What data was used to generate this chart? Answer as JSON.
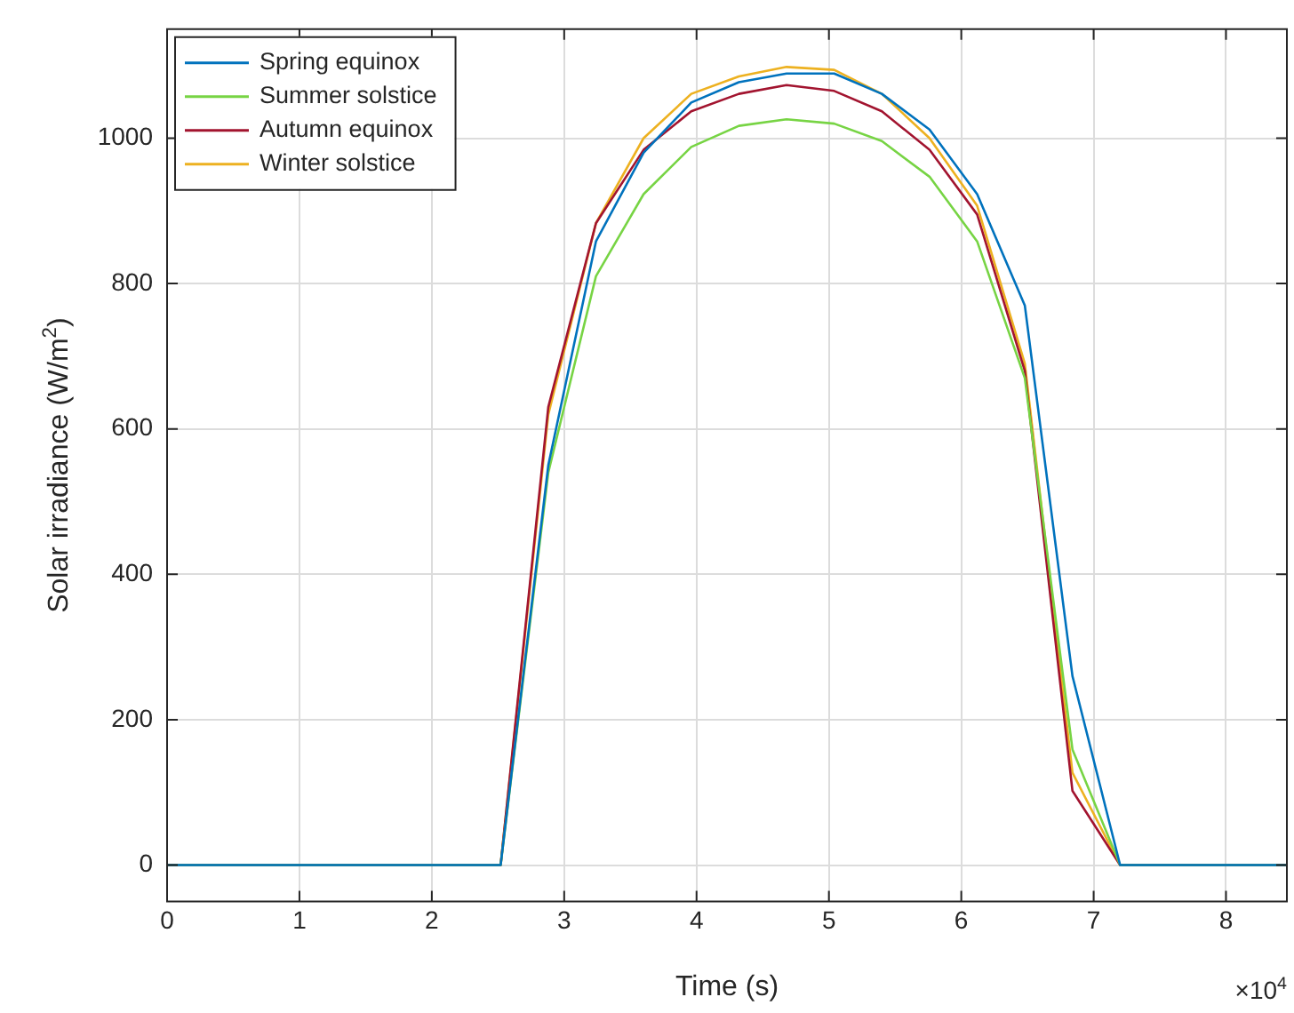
{
  "chart_data": {
    "type": "line",
    "xlabel": "Time (s)",
    "ylabel": "Solar irradiance (W/m$^{2}$)",
    "x": [
      0,
      2.52,
      2.88,
      3.24,
      3.6,
      3.96,
      4.32,
      4.68,
      5.04,
      5.4,
      5.76,
      6.12,
      6.48,
      6.84,
      7.2,
      8.46
    ],
    "series": [
      {
        "name": "Spring equinox",
        "color": "#0072bd",
        "values": [
          0,
          0,
          550,
          858,
          980,
          1049,
          1077,
          1089,
          1089,
          1061,
          1012,
          923,
          770,
          260,
          0,
          0
        ]
      },
      {
        "name": "Summer solstice",
        "color": "#77d444",
        "values": [
          0,
          0,
          540,
          810,
          923,
          988,
          1017,
          1026,
          1020,
          996,
          947,
          858,
          670,
          159,
          0,
          0
        ]
      },
      {
        "name": "Autumn equinox",
        "color": "#a2142f",
        "values": [
          0,
          0,
          630,
          883,
          984,
          1037,
          1061,
          1073,
          1065,
          1037,
          984,
          895,
          680,
          102,
          0,
          0
        ]
      },
      {
        "name": "Winter solstice",
        "color": "#edb120",
        "values": [
          0,
          0,
          620,
          883,
          1000,
          1061,
          1085,
          1098,
          1094,
          1061,
          1000,
          907,
          690,
          127,
          0,
          0
        ]
      }
    ],
    "xlim": [
      0,
      8.46
    ],
    "xticks": [
      0,
      1,
      2,
      3,
      4,
      5,
      6,
      7,
      8
    ],
    "ylim": [
      -50,
      1150
    ],
    "yticks": [
      0,
      200,
      400,
      600,
      800,
      1000
    ],
    "grid": true,
    "legend": "top left",
    "marker": "none",
    "line_style": "solid",
    "annotations": [
      "×10$^{4}$"
    ]
  }
}
